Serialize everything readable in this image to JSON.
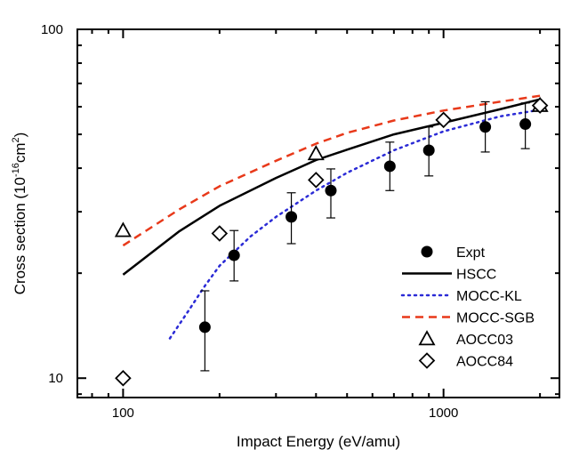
{
  "chart_data": {
    "type": "scatter",
    "title": "",
    "xlabel": "Impact Energy (eV/amu)",
    "ylabel_parts": {
      "pre": "Cross section (10",
      "exp1": "-16",
      "mid": "cm",
      "exp2": "2",
      "post": ")"
    },
    "xscale": "log",
    "yscale": "log",
    "xlim": [
      72,
      2300
    ],
    "ylim": [
      8.8,
      100
    ],
    "xtick_labels": [
      {
        "value": 100,
        "label": "100"
      },
      {
        "value": 1000,
        "label": "1000"
      }
    ],
    "ytick_labels": [
      {
        "value": 10,
        "label": "10"
      },
      {
        "value": 100,
        "label": "100"
      }
    ],
    "grid": false,
    "legend_position": "bottom-right",
    "series": [
      {
        "name": "Expt",
        "kind": "points",
        "marker": "filled-circle",
        "color": "#000000",
        "points": [
          {
            "x": 180,
            "y": 14.0,
            "lo": 10.5,
            "hi": 17.8
          },
          {
            "x": 222,
            "y": 22.5,
            "lo": 19.0,
            "hi": 26.5
          },
          {
            "x": 335,
            "y": 29.0,
            "lo": 24.3,
            "hi": 34.0
          },
          {
            "x": 445,
            "y": 34.5,
            "lo": 28.8,
            "hi": 39.8
          },
          {
            "x": 680,
            "y": 40.5,
            "lo": 34.5,
            "hi": 47.5
          },
          {
            "x": 900,
            "y": 45.0,
            "lo": 38.0,
            "hi": 52.5
          },
          {
            "x": 1350,
            "y": 52.5,
            "lo": 44.5,
            "hi": 62.0
          },
          {
            "x": 1800,
            "y": 53.5,
            "lo": 45.5,
            "hi": 61.5
          }
        ]
      },
      {
        "name": "HSCC",
        "kind": "line",
        "dash": "solid",
        "color": "#000000",
        "points": [
          {
            "x": 100,
            "y": 19.8
          },
          {
            "x": 150,
            "y": 26.4
          },
          {
            "x": 200,
            "y": 31.2
          },
          {
            "x": 300,
            "y": 37.5
          },
          {
            "x": 400,
            "y": 42.2
          },
          {
            "x": 500,
            "y": 45.2
          },
          {
            "x": 700,
            "y": 50.0
          },
          {
            "x": 1000,
            "y": 54.0
          },
          {
            "x": 1500,
            "y": 59.0
          },
          {
            "x": 2000,
            "y": 63.0
          }
        ]
      },
      {
        "name": "MOCC-KL",
        "kind": "line",
        "dash": "dotted",
        "color": "#2b2bd6",
        "points": [
          {
            "x": 140,
            "y": 13.0
          },
          {
            "x": 160,
            "y": 15.6
          },
          {
            "x": 180,
            "y": 18.4
          },
          {
            "x": 200,
            "y": 21.0
          },
          {
            "x": 250,
            "y": 25.5
          },
          {
            "x": 300,
            "y": 29.0
          },
          {
            "x": 400,
            "y": 34.5
          },
          {
            "x": 500,
            "y": 38.8
          },
          {
            "x": 700,
            "y": 45.0
          },
          {
            "x": 1000,
            "y": 51.0
          },
          {
            "x": 1500,
            "y": 56.3
          },
          {
            "x": 2000,
            "y": 58.8
          }
        ]
      },
      {
        "name": "MOCC-SGB",
        "kind": "line",
        "dash": "dashed",
        "color": "#e8391a",
        "points": [
          {
            "x": 100,
            "y": 24.0
          },
          {
            "x": 150,
            "y": 30.5
          },
          {
            "x": 200,
            "y": 35.5
          },
          {
            "x": 300,
            "y": 42.0
          },
          {
            "x": 400,
            "y": 47.0
          },
          {
            "x": 500,
            "y": 50.5
          },
          {
            "x": 700,
            "y": 54.8
          },
          {
            "x": 1000,
            "y": 58.5
          },
          {
            "x": 1500,
            "y": 62.0
          },
          {
            "x": 2000,
            "y": 64.5
          }
        ]
      },
      {
        "name": "AOCC03",
        "kind": "points",
        "marker": "open-triangle",
        "color": "#000000",
        "points": [
          {
            "x": 100,
            "y": 26.5
          },
          {
            "x": 400,
            "y": 44.0
          },
          {
            "x": 2000,
            "y": 60.5
          }
        ]
      },
      {
        "name": "AOCC84",
        "kind": "points",
        "marker": "open-diamond",
        "color": "#000000",
        "points": [
          {
            "x": 100,
            "y": 10.0
          },
          {
            "x": 200,
            "y": 26.0
          },
          {
            "x": 400,
            "y": 37.0
          },
          {
            "x": 1000,
            "y": 55.0
          },
          {
            "x": 2000,
            "y": 60.5
          }
        ]
      }
    ]
  }
}
